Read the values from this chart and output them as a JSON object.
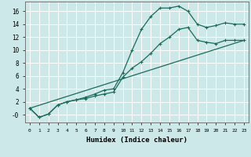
{
  "xlabel": "Humidex (Indice chaleur)",
  "background_color": "#cce8e8",
  "grid_color": "#ffffff",
  "line_color": "#1a6b5a",
  "xlim": [
    -0.5,
    23.5
  ],
  "ylim": [
    -1.2,
    17.5
  ],
  "xticks": [
    0,
    1,
    2,
    3,
    4,
    5,
    6,
    7,
    8,
    9,
    10,
    11,
    12,
    13,
    14,
    15,
    16,
    17,
    18,
    19,
    20,
    21,
    22,
    23
  ],
  "yticks": [
    0,
    2,
    4,
    6,
    8,
    10,
    12,
    14,
    16
  ],
  "ytick_labels": [
    "-0",
    "2",
    "4",
    "6",
    "8",
    "10",
    "12",
    "14",
    "16"
  ],
  "line1_x": [
    0,
    1,
    2,
    3,
    4,
    5,
    6,
    7,
    8,
    9,
    10,
    11,
    12,
    13,
    14,
    15,
    16,
    17,
    18,
    19,
    20,
    21,
    22,
    23
  ],
  "line1_y": [
    1.0,
    -0.4,
    0.1,
    1.5,
    2.0,
    2.3,
    2.7,
    3.2,
    3.8,
    4.0,
    6.5,
    10.0,
    13.2,
    15.2,
    16.5,
    16.5,
    16.8,
    16.0,
    14.0,
    13.5,
    13.8,
    14.2,
    14.0,
    14.0
  ],
  "line2_x": [
    0,
    1,
    2,
    3,
    4,
    5,
    6,
    7,
    8,
    9,
    10,
    11,
    12,
    13,
    14,
    15,
    16,
    17,
    18,
    19,
    20,
    21,
    22,
    23
  ],
  "line2_y": [
    1.0,
    -0.4,
    0.1,
    1.5,
    2.0,
    2.3,
    2.5,
    2.9,
    3.2,
    3.5,
    5.8,
    7.2,
    8.2,
    9.5,
    11.0,
    12.0,
    13.2,
    13.5,
    11.5,
    11.2,
    11.0,
    11.5,
    11.5,
    11.5
  ],
  "line3_x": [
    0,
    23
  ],
  "line3_y": [
    1.0,
    11.5
  ]
}
